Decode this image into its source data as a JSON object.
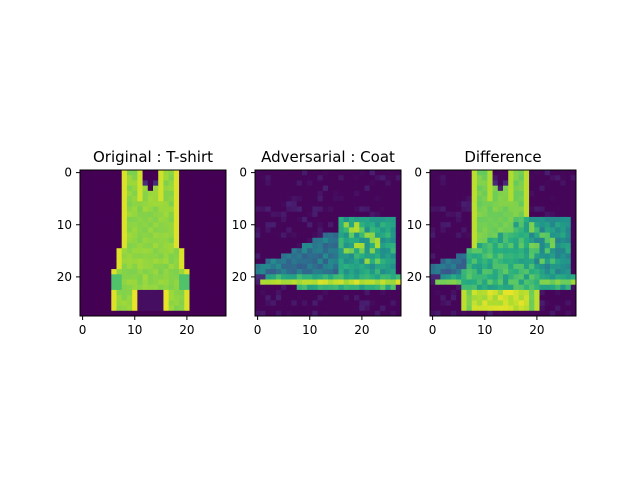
{
  "chart_data": [
    {
      "type": "heatmap",
      "title": "Original : T-shirt",
      "xticks": [
        0,
        10,
        20
      ],
      "yticks": [
        0,
        10,
        20
      ],
      "xlim": [
        -0.5,
        27.5
      ],
      "ylim": [
        27.5,
        -0.5
      ],
      "grid": false,
      "shape": "sleeveless-top",
      "colormap": "viridis"
    },
    {
      "type": "heatmap",
      "title": "Adversarial : Coat",
      "xticks": [
        0,
        10,
        20
      ],
      "yticks": [
        0,
        10,
        20
      ],
      "xlim": [
        -0.5,
        27.5
      ],
      "ylim": [
        27.5,
        -0.5
      ],
      "grid": false,
      "shape": "boot",
      "colormap": "viridis"
    },
    {
      "type": "heatmap",
      "title": "Difference",
      "xticks": [
        0,
        10,
        20
      ],
      "yticks": [
        0,
        10,
        20
      ],
      "xlim": [
        -0.5,
        27.5
      ],
      "ylim": [
        27.5,
        -0.5
      ],
      "grid": false,
      "shape": "overlay",
      "colormap": "viridis"
    }
  ]
}
